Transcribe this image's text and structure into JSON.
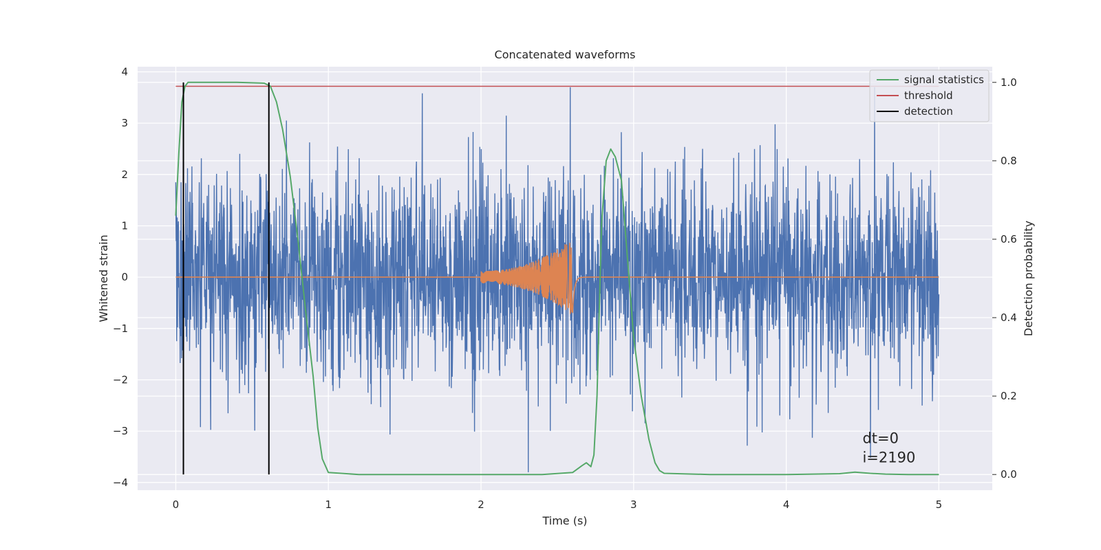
{
  "chart_data": {
    "type": "line",
    "title": "Concatenated waveforms",
    "xlabel": "Time (s)",
    "ylabel": "Whitened strain",
    "ylabel_right": "Detection probability",
    "xlim": [
      -0.25,
      5.35
    ],
    "ylim": [
      -4.15,
      4.1
    ],
    "ylim_right": [
      -0.04,
      1.04
    ],
    "x_ticks": [
      0,
      1,
      2,
      3,
      4,
      5
    ],
    "y_ticks": [
      -4,
      -3,
      -2,
      -1,
      0,
      1,
      2,
      3,
      4
    ],
    "y_ticks_right": [
      0.0,
      0.2,
      0.4,
      0.6,
      0.8,
      1.0
    ],
    "y_tick_labels_right": [
      "0.0",
      "0.2",
      "0.4",
      "0.6",
      "0.8",
      "1.0"
    ],
    "grid": true,
    "legend_position": "top-right",
    "series": [
      {
        "axis": "left",
        "color": "#4c72b0",
        "kind": "whitened-strain-noise",
        "x_range": [
          0,
          5
        ],
        "amplitude_core": 0.85,
        "envelope_typical": [
          -1.5,
          1.8
        ],
        "extremes": [
          -3.8,
          3.7
        ]
      },
      {
        "axis": "left",
        "color": "#dd8452",
        "kind": "injected-chirp",
        "x_range": [
          0,
          5
        ],
        "chirp_start": 2.0,
        "chirp_merger": 2.6,
        "peak_amplitude": 0.75
      },
      {
        "name": "signal statistics",
        "axis": "right",
        "color": "#55a868",
        "x": [
          0,
          0.02,
          0.04,
          0.06,
          0.08,
          0.12,
          0.2,
          0.4,
          0.58,
          0.62,
          0.66,
          0.7,
          0.75,
          0.8,
          0.85,
          0.9,
          0.93,
          0.96,
          1.0,
          1.2,
          1.5,
          2.0,
          2.4,
          2.6,
          2.66,
          2.69,
          2.72,
          2.74,
          2.76,
          2.79,
          2.82,
          2.85,
          2.88,
          2.92,
          2.96,
          3.0,
          3.05,
          3.1,
          3.14,
          3.17,
          3.2,
          3.5,
          4.0,
          4.35,
          4.45,
          4.55,
          4.65,
          4.8,
          5.0
        ],
        "y": [
          0.66,
          0.82,
          0.95,
          0.99,
          1.0,
          1.0,
          1.0,
          1.0,
          0.998,
          0.99,
          0.95,
          0.88,
          0.76,
          0.6,
          0.42,
          0.25,
          0.12,
          0.04,
          0.005,
          0.0,
          0.0,
          0.0,
          0.0,
          0.005,
          0.022,
          0.03,
          0.02,
          0.05,
          0.2,
          0.64,
          0.8,
          0.83,
          0.81,
          0.75,
          0.55,
          0.35,
          0.2,
          0.09,
          0.03,
          0.01,
          0.003,
          0.0,
          0.0,
          0.002,
          0.006,
          0.003,
          0.001,
          0.0,
          0.0
        ]
      },
      {
        "name": "threshold",
        "axis": "right",
        "color": "#c44e52",
        "x": [
          0,
          5
        ],
        "y": [
          0.99,
          0.99
        ]
      },
      {
        "name": "detection",
        "axis": "right",
        "color": "#000000",
        "x": [
          0.05,
          0.61
        ],
        "y_span": [
          0.0,
          1.0
        ]
      }
    ],
    "annotation": {
      "lines": [
        "dt=0",
        "i=2190"
      ],
      "x": 4.5,
      "y": -3.1
    }
  }
}
